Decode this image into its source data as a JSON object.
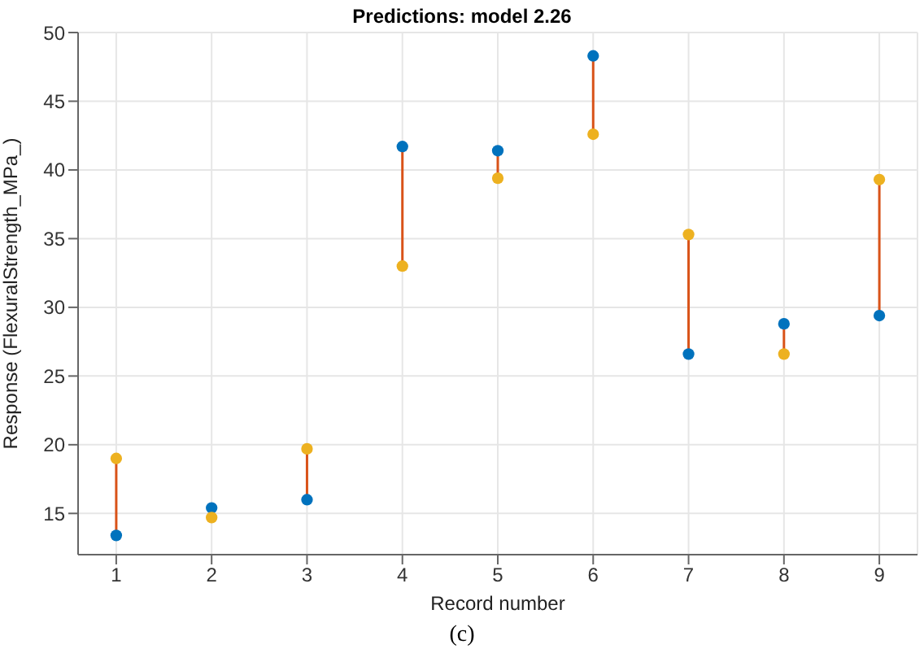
{
  "chart_data": {
    "type": "scatter",
    "title": "Predictions: model 2.26",
    "xlabel": "Record number",
    "ylabel": "Response (FlexuralStrength_MPa_)",
    "annotations": [
      "(c)"
    ],
    "x": [
      1,
      2,
      3,
      4,
      5,
      6,
      7,
      8,
      9
    ],
    "series": [
      {
        "color": "#0072bd",
        "values": [
          13.4,
          15.4,
          16.0,
          41.7,
          41.4,
          48.3,
          26.6,
          28.8,
          29.4
        ]
      },
      {
        "color": "#edb120",
        "values": [
          19.0,
          14.7,
          19.7,
          33.0,
          39.4,
          42.6,
          35.3,
          26.6,
          39.3
        ]
      },
      {
        "type": "line",
        "color": "#d95319",
        "x": [
          1,
          1
        ],
        "values": [
          13.4,
          19.0
        ],
        "marker": "none"
      },
      {
        "type": "line",
        "color": "#d95319",
        "x": [
          3,
          3
        ],
        "values": [
          16.0,
          19.7
        ],
        "marker": "none"
      },
      {
        "type": "line",
        "color": "#d95319",
        "x": [
          4,
          4
        ],
        "values": [
          41.7,
          33.0
        ],
        "marker": "none"
      },
      {
        "type": "line",
        "color": "#d95319",
        "x": [
          5,
          5
        ],
        "values": [
          41.4,
          39.4
        ],
        "marker": "none"
      },
      {
        "type": "line",
        "color": "#d95319",
        "x": [
          6,
          6
        ],
        "values": [
          48.3,
          42.6
        ],
        "marker": "none"
      },
      {
        "type": "line",
        "color": "#d95319",
        "x": [
          7,
          7
        ],
        "values": [
          26.6,
          35.3
        ],
        "marker": "none"
      },
      {
        "type": "line",
        "color": "#d95319",
        "x": [
          8,
          8
        ],
        "values": [
          28.8,
          26.6
        ],
        "marker": "none"
      },
      {
        "type": "line",
        "color": "#d95319",
        "x": [
          9,
          9
        ],
        "values": [
          29.4,
          39.3
        ],
        "marker": "none"
      }
    ],
    "xlim": [
      0.6,
      9.4
    ],
    "xticks": [
      1,
      2,
      3,
      4,
      5,
      6,
      7,
      8,
      9
    ],
    "ylim": [
      12,
      50
    ],
    "yticks": [
      15,
      20,
      25,
      30,
      35,
      40,
      45,
      50
    ],
    "grid": true,
    "marker": "circle"
  }
}
